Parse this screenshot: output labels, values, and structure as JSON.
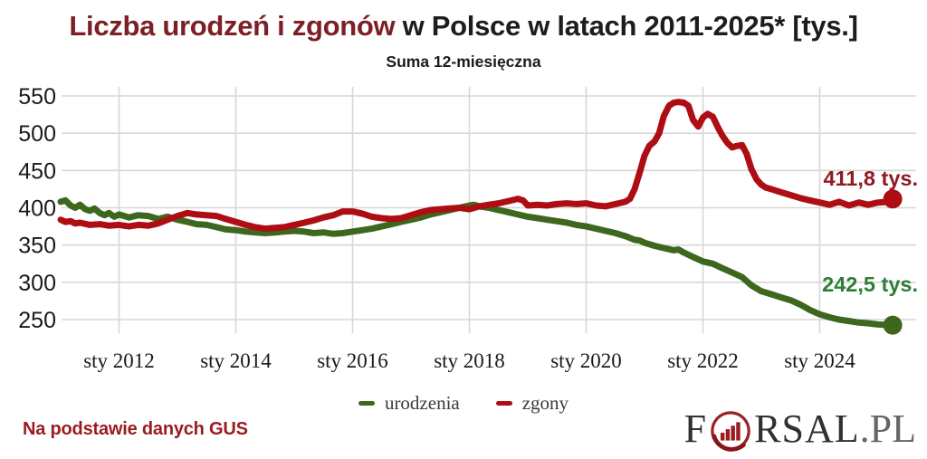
{
  "title": {
    "highlight": "Liczba urodzeń i zgonów",
    "rest": " w Polsce w latach 2011-2025* [tys.]"
  },
  "subtitle": "Suma 12-miesięczna",
  "source_note": "Na podstawie danych GUS",
  "logo": {
    "prefix": "F",
    "mid": "RSAL",
    "tld": ".PL"
  },
  "colors": {
    "title_highlight": "#7d2026",
    "title_text": "#1d1d1d",
    "births_line": "#3e671e",
    "deaths_line": "#ad0d13",
    "births_label": "#2e7d38",
    "deaths_label": "#8e1b21",
    "source_note": "#9b1c20",
    "grid": "#d7d7d7",
    "axis_text": "#1a1a1a",
    "logo_red": "#9d2127",
    "logo_bars": "#9d1b20"
  },
  "chart_data": {
    "type": "line",
    "title": "Liczba urodzeń i zgonów w Polsce w latach 2011-2025* [tys.]",
    "subtitle": "Suma 12-miesięczna",
    "xlabel": "",
    "ylabel": "",
    "x_range": [
      2011.0,
      2025.33
    ],
    "ylim": [
      250,
      550
    ],
    "grid": true,
    "legend_position": "bottom",
    "y_ticks": [
      250,
      300,
      350,
      400,
      450,
      500,
      550
    ],
    "x_ticks": [
      {
        "year": 2012,
        "label": "sty 2012"
      },
      {
        "year": 2014,
        "label": "sty 2014"
      },
      {
        "year": 2016,
        "label": "sty 2016"
      },
      {
        "year": 2018,
        "label": "sty 2018"
      },
      {
        "year": 2020,
        "label": "sty 2020"
      },
      {
        "year": 2022,
        "label": "sty 2022"
      },
      {
        "year": 2024,
        "label": "sty 2024"
      }
    ],
    "series": [
      {
        "name": "urodzenia",
        "color": "#3e671e",
        "end_label": "242,5 tys.",
        "end_value": 242.5,
        "points": [
          [
            2011.0,
            408
          ],
          [
            2011.08,
            410
          ],
          [
            2011.17,
            403
          ],
          [
            2011.25,
            400
          ],
          [
            2011.33,
            404
          ],
          [
            2011.42,
            398
          ],
          [
            2011.5,
            396
          ],
          [
            2011.58,
            399
          ],
          [
            2011.67,
            393
          ],
          [
            2011.75,
            390
          ],
          [
            2011.83,
            393
          ],
          [
            2011.92,
            388
          ],
          [
            2012.0,
            391
          ],
          [
            2012.17,
            387
          ],
          [
            2012.33,
            390
          ],
          [
            2012.5,
            389
          ],
          [
            2012.67,
            385
          ],
          [
            2012.83,
            388
          ],
          [
            2013.0,
            384
          ],
          [
            2013.17,
            381
          ],
          [
            2013.33,
            378
          ],
          [
            2013.5,
            377
          ],
          [
            2013.67,
            374
          ],
          [
            2013.83,
            371
          ],
          [
            2014.0,
            370
          ],
          [
            2014.17,
            368
          ],
          [
            2014.33,
            367
          ],
          [
            2014.5,
            366
          ],
          [
            2014.67,
            367
          ],
          [
            2014.83,
            368
          ],
          [
            2015.0,
            369
          ],
          [
            2015.17,
            368
          ],
          [
            2015.33,
            366
          ],
          [
            2015.5,
            367
          ],
          [
            2015.67,
            365
          ],
          [
            2015.83,
            366
          ],
          [
            2016.0,
            368
          ],
          [
            2016.17,
            370
          ],
          [
            2016.33,
            372
          ],
          [
            2016.5,
            375
          ],
          [
            2016.67,
            378
          ],
          [
            2016.83,
            381
          ],
          [
            2017.0,
            384
          ],
          [
            2017.17,
            387
          ],
          [
            2017.33,
            391
          ],
          [
            2017.5,
            394
          ],
          [
            2017.67,
            397
          ],
          [
            2017.83,
            400
          ],
          [
            2018.0,
            403
          ],
          [
            2018.08,
            404
          ],
          [
            2018.17,
            402
          ],
          [
            2018.33,
            400
          ],
          [
            2018.5,
            397
          ],
          [
            2018.67,
            394
          ],
          [
            2018.83,
            391
          ],
          [
            2019.0,
            388
          ],
          [
            2019.17,
            386
          ],
          [
            2019.33,
            384
          ],
          [
            2019.5,
            382
          ],
          [
            2019.67,
            380
          ],
          [
            2019.83,
            377
          ],
          [
            2020.0,
            375
          ],
          [
            2020.17,
            372
          ],
          [
            2020.33,
            369
          ],
          [
            2020.5,
            366
          ],
          [
            2020.67,
            362
          ],
          [
            2020.83,
            357
          ],
          [
            2020.92,
            356
          ],
          [
            2021.0,
            353
          ],
          [
            2021.17,
            349
          ],
          [
            2021.33,
            346
          ],
          [
            2021.5,
            343
          ],
          [
            2021.58,
            344
          ],
          [
            2021.67,
            340
          ],
          [
            2021.83,
            334
          ],
          [
            2022.0,
            328
          ],
          [
            2022.17,
            325
          ],
          [
            2022.33,
            319
          ],
          [
            2022.5,
            313
          ],
          [
            2022.67,
            307
          ],
          [
            2022.83,
            296
          ],
          [
            2023.0,
            288
          ],
          [
            2023.17,
            284
          ],
          [
            2023.33,
            280
          ],
          [
            2023.5,
            276
          ],
          [
            2023.67,
            270
          ],
          [
            2023.83,
            263
          ],
          [
            2024.0,
            257
          ],
          [
            2024.17,
            253
          ],
          [
            2024.33,
            250
          ],
          [
            2024.5,
            248
          ],
          [
            2024.67,
            246
          ],
          [
            2024.83,
            245
          ],
          [
            2025.0,
            243.5
          ],
          [
            2025.25,
            242.5
          ]
        ]
      },
      {
        "name": "zgony",
        "color": "#ad0d13",
        "end_label": "411,8 tys.",
        "end_value": 411.8,
        "points": [
          [
            2011.0,
            384
          ],
          [
            2011.08,
            381
          ],
          [
            2011.17,
            382
          ],
          [
            2011.25,
            379
          ],
          [
            2011.33,
            380
          ],
          [
            2011.5,
            377
          ],
          [
            2011.67,
            378
          ],
          [
            2011.83,
            376
          ],
          [
            2012.0,
            377
          ],
          [
            2012.17,
            375
          ],
          [
            2012.33,
            377
          ],
          [
            2012.5,
            376
          ],
          [
            2012.67,
            379
          ],
          [
            2012.83,
            384
          ],
          [
            2013.0,
            389
          ],
          [
            2013.17,
            393
          ],
          [
            2013.33,
            391
          ],
          [
            2013.5,
            390
          ],
          [
            2013.67,
            389
          ],
          [
            2013.83,
            385
          ],
          [
            2014.0,
            381
          ],
          [
            2014.17,
            377
          ],
          [
            2014.33,
            374
          ],
          [
            2014.5,
            372
          ],
          [
            2014.67,
            373
          ],
          [
            2014.83,
            374
          ],
          [
            2015.0,
            377
          ],
          [
            2015.17,
            380
          ],
          [
            2015.33,
            383
          ],
          [
            2015.5,
            387
          ],
          [
            2015.67,
            390
          ],
          [
            2015.83,
            395
          ],
          [
            2016.0,
            395
          ],
          [
            2016.17,
            392
          ],
          [
            2016.33,
            388
          ],
          [
            2016.5,
            386
          ],
          [
            2016.67,
            385
          ],
          [
            2016.83,
            386
          ],
          [
            2017.0,
            390
          ],
          [
            2017.17,
            394
          ],
          [
            2017.33,
            397
          ],
          [
            2017.5,
            398
          ],
          [
            2017.67,
            399
          ],
          [
            2017.83,
            400
          ],
          [
            2018.0,
            398
          ],
          [
            2018.17,
            402
          ],
          [
            2018.33,
            404
          ],
          [
            2018.5,
            406
          ],
          [
            2018.67,
            409
          ],
          [
            2018.83,
            412
          ],
          [
            2018.92,
            410
          ],
          [
            2019.0,
            403
          ],
          [
            2019.17,
            404
          ],
          [
            2019.33,
            403
          ],
          [
            2019.5,
            405
          ],
          [
            2019.67,
            406
          ],
          [
            2019.83,
            405
          ],
          [
            2020.0,
            406
          ],
          [
            2020.17,
            403
          ],
          [
            2020.33,
            402
          ],
          [
            2020.5,
            405
          ],
          [
            2020.67,
            408
          ],
          [
            2020.75,
            412
          ],
          [
            2020.83,
            425
          ],
          [
            2020.92,
            448
          ],
          [
            2021.0,
            470
          ],
          [
            2021.08,
            483
          ],
          [
            2021.17,
            489
          ],
          [
            2021.25,
            500
          ],
          [
            2021.33,
            523
          ],
          [
            2021.42,
            537
          ],
          [
            2021.5,
            541
          ],
          [
            2021.58,
            542
          ],
          [
            2021.67,
            541
          ],
          [
            2021.75,
            537
          ],
          [
            2021.83,
            518
          ],
          [
            2021.92,
            509
          ],
          [
            2022.0,
            521
          ],
          [
            2022.08,
            526
          ],
          [
            2022.17,
            522
          ],
          [
            2022.25,
            509
          ],
          [
            2022.33,
            497
          ],
          [
            2022.42,
            487
          ],
          [
            2022.5,
            481
          ],
          [
            2022.58,
            483
          ],
          [
            2022.67,
            484
          ],
          [
            2022.75,
            472
          ],
          [
            2022.83,
            452
          ],
          [
            2022.92,
            438
          ],
          [
            2023.0,
            431
          ],
          [
            2023.08,
            427
          ],
          [
            2023.17,
            425
          ],
          [
            2023.33,
            421
          ],
          [
            2023.5,
            417
          ],
          [
            2023.67,
            413
          ],
          [
            2023.83,
            410
          ],
          [
            2024.0,
            407
          ],
          [
            2024.17,
            404
          ],
          [
            2024.33,
            408
          ],
          [
            2024.5,
            403
          ],
          [
            2024.67,
            407
          ],
          [
            2024.83,
            404
          ],
          [
            2025.0,
            407
          ],
          [
            2025.17,
            408
          ],
          [
            2025.25,
            411.8
          ]
        ]
      }
    ]
  }
}
